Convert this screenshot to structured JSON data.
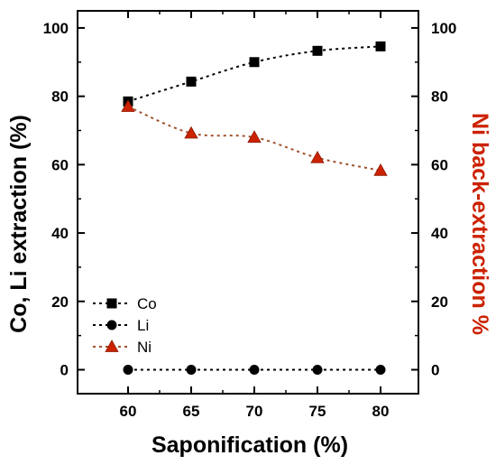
{
  "chart_data": {
    "type": "line",
    "x": [
      60,
      65,
      70,
      75,
      80
    ],
    "xlabel": "Saponification (%)",
    "ylabel_left": "Co, Li extraction (%)",
    "ylabel_right": "Ni back-extraction %",
    "xlim": [
      56,
      83
    ],
    "ylim_left": [
      -7,
      105
    ],
    "ylim_right": [
      -7,
      105
    ],
    "x_ticks": [
      60,
      65,
      70,
      75,
      80
    ],
    "y_ticks": [
      0,
      20,
      40,
      60,
      80,
      100
    ],
    "grid": false,
    "legend_position": "bottom-left",
    "series": [
      {
        "name": "Co",
        "axis": "left",
        "marker": "square",
        "color": "#000000",
        "values": [
          78.5,
          84.3,
          90.0,
          93.3,
          94.6
        ]
      },
      {
        "name": "Li",
        "axis": "left",
        "marker": "circle",
        "color": "#000000",
        "values": [
          0,
          0,
          0,
          0,
          0
        ]
      },
      {
        "name": "Ni",
        "axis": "right",
        "marker": "triangle",
        "color": "#cc2200",
        "line_color": "#a0522d",
        "values": [
          77.0,
          69.2,
          68.0,
          62.0,
          58.3
        ]
      }
    ],
    "colors": {
      "axis": "#000000",
      "right_label": "#cc2200"
    }
  }
}
